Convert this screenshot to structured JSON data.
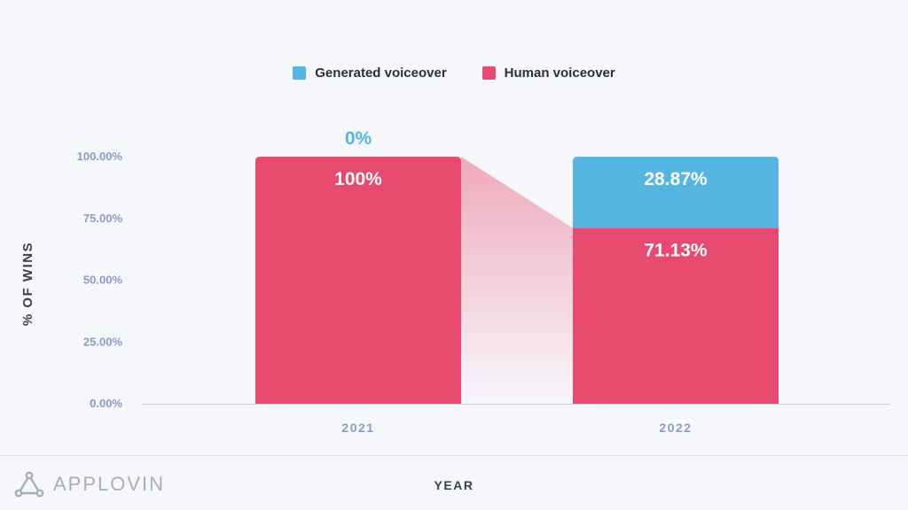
{
  "legend": {
    "items": [
      {
        "label": "Generated voiceover",
        "color": "#54b6e0"
      },
      {
        "label": "Human voiceover",
        "color": "#e84a6f"
      }
    ]
  },
  "brand": {
    "logo_text": "APPLOVIN",
    "logo_icon": "applovin-triangle-icon"
  },
  "chart_data": {
    "type": "bar",
    "stacked": true,
    "categories": [
      "2021",
      "2022"
    ],
    "series": [
      {
        "name": "Human voiceover",
        "values": [
          100,
          71.13
        ],
        "color": "#e84a6f",
        "labels": [
          "100%",
          "71.13%"
        ]
      },
      {
        "name": "Generated voiceover",
        "values": [
          0,
          28.87
        ],
        "color": "#54b6e0",
        "labels": [
          "0%",
          "28.87%"
        ]
      }
    ],
    "ylabel": "% OF WINS",
    "xlabel": "YEAR",
    "ylim": [
      0,
      100
    ],
    "yticks": [
      "0.00%",
      "25.00%",
      "50.00%",
      "75.00%",
      "100.00%"
    ],
    "grid": false,
    "legend_position": "top-center"
  }
}
